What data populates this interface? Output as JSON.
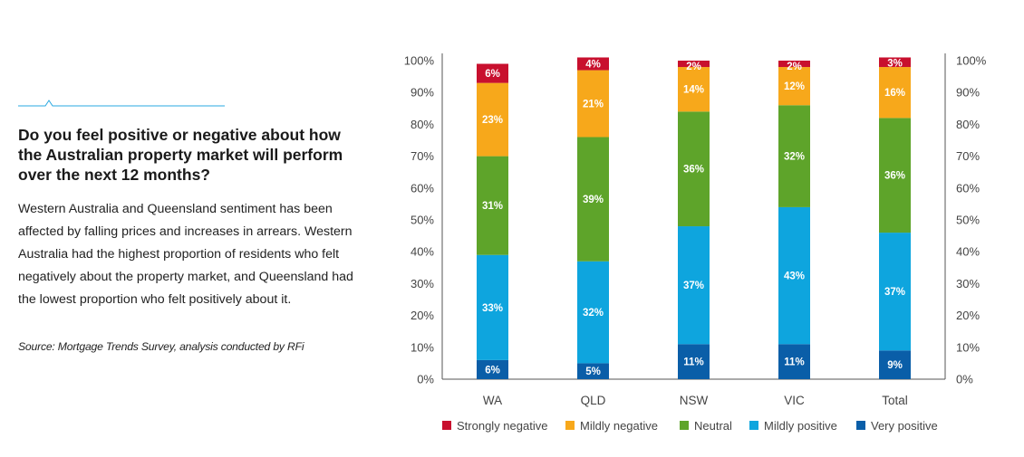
{
  "intro": {
    "question": "Do you feel positive or negative about how the Australian property market will perform over the next 12 months?",
    "body": "Western Australia and Queensland sentiment has been affected by falling prices and increases in arrears. Western Australia had the highest proportion of residents who felt negatively about the property market, and Queensland had the lowest proportion who felt positively about it.",
    "source": "Source: Mortgage Trends Survey, analysis conducted by RFi"
  },
  "colors": {
    "very_positive": "#0a5ea8",
    "mildly_positive": "#0ea5de",
    "neutral": "#5ea42a",
    "mildly_negative": "#f7a81b",
    "strongly_negative": "#c8102e",
    "accent_line": "#29a8e0"
  },
  "chart_data": {
    "type": "bar",
    "stacked": true,
    "categories": [
      "WA",
      "QLD",
      "NSW",
      "VIC",
      "Total"
    ],
    "ylim": [
      0,
      100
    ],
    "yticks": [
      "0%",
      "10%",
      "20%",
      "30%",
      "40%",
      "50%",
      "60%",
      "70%",
      "80%",
      "90%",
      "100%"
    ],
    "series": [
      {
        "name": "Very positive",
        "color_key": "very_positive",
        "values": [
          6,
          5,
          11,
          11,
          9
        ],
        "labels": [
          "6%",
          "5%",
          "11%",
          "11%",
          "9%"
        ]
      },
      {
        "name": "Mildly positive",
        "color_key": "mildly_positive",
        "values": [
          33,
          32,
          37,
          43,
          37
        ],
        "labels": [
          "33%",
          "32%",
          "37%",
          "43%",
          "37%"
        ]
      },
      {
        "name": "Neutral",
        "color_key": "neutral",
        "values": [
          31,
          39,
          36,
          32,
          36
        ],
        "labels": [
          "31%",
          "39%",
          "36%",
          "32%",
          "36%"
        ]
      },
      {
        "name": "Mildly negative",
        "color_key": "mildly_negative",
        "values": [
          23,
          21,
          14,
          12,
          16
        ],
        "labels": [
          "23%",
          "21%",
          "14%",
          "12%",
          "16%"
        ]
      },
      {
        "name": "Strongly negative",
        "color_key": "strongly_negative",
        "values": [
          6,
          4,
          2,
          2,
          3
        ],
        "labels": [
          "6%",
          "4%",
          "2%",
          "2%",
          "3%"
        ]
      }
    ],
    "legend_order": [
      "Strongly negative",
      "Mildly negative",
      "Neutral",
      "Mildly positive",
      "Very positive"
    ],
    "legend_position": "bottom",
    "dual_y_axis": true
  }
}
